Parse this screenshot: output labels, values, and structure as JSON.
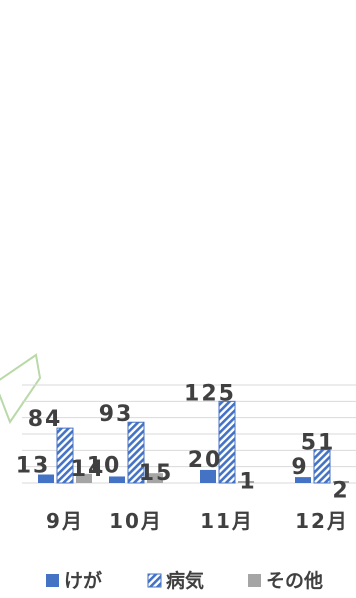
{
  "chart_data": {
    "type": "bar",
    "categories": [
      "9月",
      "10月",
      "11月",
      "12月"
    ],
    "series": [
      {
        "name": "けが",
        "values": [
          13,
          10,
          20,
          9
        ],
        "color": "#4472C4",
        "pattern": "solid"
      },
      {
        "name": "病気",
        "values": [
          84,
          93,
          125,
          51
        ],
        "color": "#4472C4",
        "pattern": "diagonal-hatch"
      },
      {
        "name": "その他",
        "values": [
          14,
          15,
          1,
          2
        ],
        "color": "#A5A5A5",
        "pattern": "solid"
      }
    ],
    "ylim": [
      0,
      150
    ],
    "grid": true,
    "legend_position": "bottom",
    "data_labels": true
  }
}
